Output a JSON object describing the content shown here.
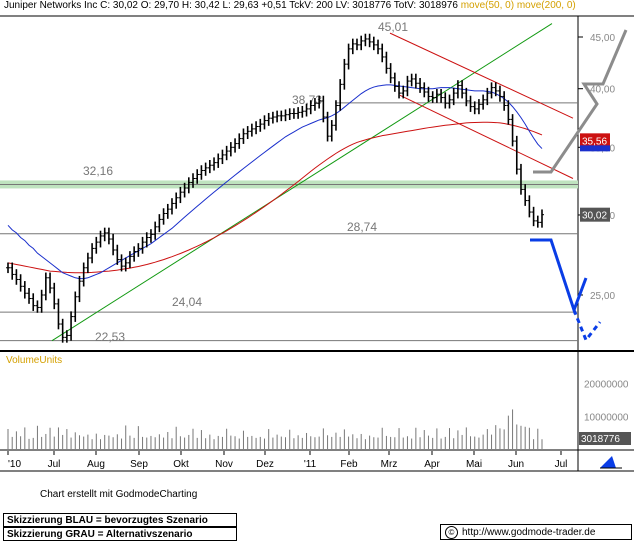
{
  "header": {
    "text": "Juniper Networks Inc C: 30,02 O: 29,70 H: 30,42 L: 29,63 +0,51 TckV: 200 LV: 3018776 TotV: 3018976",
    "ma50": "move(50, 0)",
    "ma200": "move(200, 0)"
  },
  "footer": {
    "credit": "Chart erstellt mit GodmodeCharting",
    "legend_blue": "Skizzierung BLAU = bevorzugtes Szenario",
    "legend_grey": "Skizzierung GRAU = Alternativszenario",
    "url": "http://www.godmode-trader.de",
    "copyright_symbol": "©"
  },
  "colors": {
    "ma50": "#1a2fcc",
    "ma200": "#cc1111",
    "trend": "#119911",
    "channel": "#cc1111",
    "scenario_blue": "#0a3de6",
    "scenario_grey": "#8c8c8c",
    "zone": "#bfe3bf"
  },
  "chart_data": [
    {
      "type": "line",
      "subtype": "ohlc-bars",
      "title": "Juniper Networks Inc",
      "x_ticks": [
        "'10",
        "Jul",
        "Aug",
        "Sep",
        "Okt",
        "Nov",
        "Dez",
        "'11",
        "Feb",
        "Mrz",
        "Apr",
        "Mai",
        "Jun",
        "Jul"
      ],
      "y_ticks": [
        "45,00",
        "40,00",
        "35,00",
        "30,00",
        "25,00"
      ],
      "ylim": [
        21.5,
        47.5
      ],
      "y_scale": "log",
      "grid": false,
      "levels": [
        {
          "label": "45,01",
          "value": 45.01
        },
        {
          "label": "38,73",
          "value": 38.73
        },
        {
          "label": "32,16",
          "value": 32.16
        },
        {
          "label": "28,74",
          "value": 28.74
        },
        {
          "label": "24,04",
          "value": 24.04
        },
        {
          "label": "22,53",
          "value": 22.53
        }
      ],
      "price_tags": [
        {
          "label": "35,56",
          "color": "#cc1111"
        },
        {
          "label": "30,02",
          "color": "#555555"
        }
      ],
      "series": [
        {
          "name": "Juniper Networks Inc",
          "values": [
            26.6,
            26.2,
            25.9,
            25.5,
            25.1,
            24.8,
            24.4,
            24.3,
            25.0,
            26.0,
            25.4,
            24.5,
            23.4,
            22.7,
            22.8,
            23.8,
            24.9,
            25.8,
            26.6,
            27.2,
            27.8,
            28.2,
            28.6,
            28.8,
            28.4,
            27.7,
            27.1,
            26.7,
            26.9,
            27.3,
            27.6,
            27.8,
            28.2,
            28.5,
            28.7,
            29.2,
            29.7,
            30.1,
            30.4,
            30.8,
            31.2,
            31.6,
            31.9,
            32.3,
            32.6,
            32.9,
            33.2,
            33.4,
            33.6,
            33.8,
            34.1,
            34.4,
            34.7,
            35.0,
            35.3,
            35.7,
            36.1,
            36.3,
            36.5,
            36.7,
            36.9,
            37.2,
            37.4,
            37.5,
            37.6,
            37.6,
            37.7,
            37.8,
            37.8,
            37.9,
            38.0,
            38.2,
            38.5,
            38.7,
            38.9,
            37.5,
            35.9,
            36.8,
            38.5,
            40.4,
            42.3,
            43.8,
            44.3,
            44.2,
            44.6,
            44.8,
            44.5,
            44.2,
            43.8,
            43.0,
            41.9,
            41.0,
            40.2,
            39.6,
            39.8,
            40.7,
            40.9,
            40.5,
            40.1,
            39.7,
            39.3,
            39.2,
            39.5,
            39.2,
            38.7,
            39.0,
            39.6,
            40.3,
            39.6,
            38.9,
            38.4,
            38.2,
            38.6,
            39.0,
            39.6,
            40.1,
            39.8,
            39.3,
            38.5,
            37.3,
            35.5,
            33.3,
            31.8,
            31.0,
            30.2,
            29.6,
            29.5,
            30.02
          ]
        },
        {
          "name": "move(50, 0)",
          "values": [
            29.3,
            29.0,
            28.8,
            28.5,
            28.3,
            28.0,
            27.8,
            27.5,
            27.3,
            27.1,
            26.9,
            26.7,
            26.5,
            26.3,
            26.2,
            26.1,
            26.0,
            25.95,
            25.95,
            26.0,
            26.1,
            26.2,
            26.3,
            26.45,
            26.6,
            26.75,
            26.9,
            27.05,
            27.2,
            27.35,
            27.5,
            27.65,
            27.8,
            27.95,
            28.1,
            28.3,
            28.5,
            28.7,
            28.9,
            29.1,
            29.35,
            29.6,
            29.85,
            30.1,
            30.35,
            30.6,
            30.85,
            31.1,
            31.35,
            31.6,
            31.85,
            32.1,
            32.35,
            32.6,
            32.85,
            33.1,
            33.35,
            33.6,
            33.85,
            34.1,
            34.35,
            34.6,
            34.85,
            35.1,
            35.35,
            35.6,
            35.85,
            36.05,
            36.25,
            36.45,
            36.65,
            36.8,
            36.95,
            37.1,
            37.25,
            37.35,
            37.45,
            37.6,
            37.8,
            38.05,
            38.35,
            38.65,
            38.95,
            39.25,
            39.55,
            39.8,
            40.0,
            40.15,
            40.25,
            40.3,
            40.35,
            40.35,
            40.3,
            40.25,
            40.2,
            40.15,
            40.1,
            40.05,
            40.0,
            40.0,
            40.0,
            40.0,
            40.05,
            40.1,
            40.1,
            40.1,
            40.05,
            40.0,
            39.95,
            39.9,
            39.85,
            39.8,
            39.8,
            39.8,
            39.75,
            39.7,
            39.55,
            39.35,
            39.1,
            38.8,
            38.4,
            37.95,
            37.45,
            36.9,
            36.3,
            35.75,
            35.25,
            34.9
          ]
        },
        {
          "name": "move(200, 0)",
          "values": [
            26.9,
            26.85,
            26.8,
            26.75,
            26.7,
            26.65,
            26.6,
            26.55,
            26.5,
            26.45,
            26.4,
            26.38,
            26.36,
            26.34,
            26.32,
            26.31,
            26.3,
            26.3,
            26.3,
            26.31,
            26.32,
            26.34,
            26.36,
            26.38,
            26.4,
            26.43,
            26.46,
            26.5,
            26.54,
            26.58,
            26.63,
            26.68,
            26.74,
            26.8,
            26.87,
            26.94,
            27.02,
            27.1,
            27.19,
            27.28,
            27.38,
            27.48,
            27.59,
            27.7,
            27.82,
            27.94,
            28.07,
            28.2,
            28.34,
            28.48,
            28.63,
            28.78,
            28.94,
            29.1,
            29.27,
            29.44,
            29.62,
            29.8,
            29.99,
            30.18,
            30.38,
            30.58,
            30.79,
            31.0,
            31.22,
            31.44,
            31.67,
            31.9,
            32.14,
            32.38,
            32.63,
            32.88,
            33.13,
            33.38,
            33.62,
            33.85,
            34.08,
            34.3,
            34.52,
            34.72,
            34.91,
            35.09,
            35.25,
            35.39,
            35.5,
            35.6,
            35.7,
            35.78,
            35.86,
            35.94,
            36.0,
            36.06,
            36.12,
            36.18,
            36.24,
            36.3,
            36.36,
            36.42,
            36.48,
            36.54,
            36.6,
            36.65,
            36.7,
            36.75,
            36.8,
            36.84,
            36.88,
            36.92,
            36.96,
            37.0,
            37.02,
            37.04,
            37.05,
            37.06,
            37.06,
            37.05,
            37.03,
            37.0,
            36.95,
            36.88,
            36.8,
            36.72,
            36.62,
            36.52,
            36.4,
            36.28,
            36.14,
            36.0
          ]
        }
      ],
      "annotations": [
        "trendline",
        "downtrend channel",
        "support zone 32,16",
        "scenario blue",
        "scenario grey"
      ]
    },
    {
      "type": "bar",
      "title": "VolumeUnits",
      "y_ticks": [
        "20000000",
        "10000000"
      ],
      "ylim": [
        0,
        26000000
      ],
      "price_tags": [
        {
          "label": "3018776"
        }
      ],
      "values": [
        6.1,
        3.7,
        5.4,
        3.9,
        6.6,
        3.1,
        3.4,
        7.1,
        3.7,
        4.6,
        6.5,
        3.8,
        6.6,
        4.3,
        6.1,
        3.5,
        5.1,
        4.2,
        3.8,
        4.4,
        3.0,
        4.7,
        3.0,
        4.3,
        4.1,
        3.6,
        4.5,
        3.2,
        7.2,
        4.1,
        3.4,
        7.0,
        3.7,
        3.5,
        4.0,
        3.6,
        4.5,
        3.5,
        5.2,
        3.3,
        6.8,
        3.9,
        3.5,
        4.3,
        6.2,
        3.4,
        5.8,
        3.3,
        4.4,
        3.0,
        4.0,
        3.7,
        6.2,
        4.1,
        3.9,
        3.2,
        5.6,
        3.7,
        4.0,
        3.4,
        3.7,
        3.2,
        6.1,
        3.5,
        4.4,
        3.8,
        3.6,
        5.9,
        3.3,
        4.2,
        3.4,
        4.9,
        3.9,
        3.6,
        3.8,
        6.3,
        4.2,
        3.7,
        5.0,
        3.7,
        6.0,
        3.8,
        4.5,
        3.3,
        4.6,
        3.0,
        4.1,
        3.6,
        3.5,
        6.5,
        4.0,
        3.7,
        3.6,
        6.4,
        3.5,
        3.9,
        3.2,
        6.5,
        3.6,
        5.8,
        4.1,
        3.4,
        6.3,
        3.2,
        3.7,
        6.4,
        3.3,
        5.7,
        4.3,
        6.6,
        3.9,
        3.8,
        3.5,
        4.4,
        6.1,
        4.4,
        7.3,
        6.3,
        6.0,
        10.2,
        12.1,
        7.5,
        7.1,
        6.8,
        6.5,
        3.0,
        6.2,
        3.0
      ]
    }
  ]
}
